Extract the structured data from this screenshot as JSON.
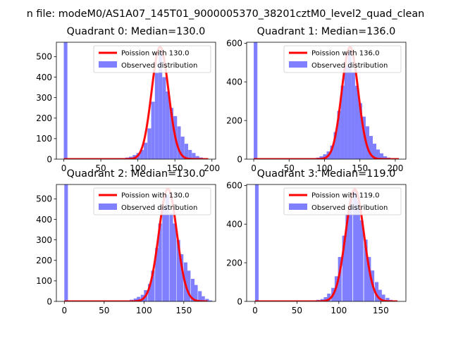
{
  "figure": {
    "suptitle": "n file: modeM0/AS1A07_145T01_9000005370_38201cztM0_level2_quad_clean"
  },
  "colors": {
    "poisson": "#ff0000",
    "observed": "#8080ff",
    "axis": "#000000"
  },
  "chart_data": [
    {
      "type": "bar",
      "title": "Quadrant 0: Median=130.0",
      "xlim": [
        -10,
        205
      ],
      "ylim": [
        0,
        570
      ],
      "xticks": [
        0,
        50,
        100,
        150,
        200
      ],
      "yticks": [
        0,
        100,
        200,
        300,
        400,
        500
      ],
      "legend_position": "top-right",
      "series": [
        {
          "name": "Observed distribution",
          "kind": "histogram",
          "bin_width": 4.9,
          "bins": [
            {
              "x": 0,
              "y": 570
            },
            {
              "x": 73,
              "y": 2
            },
            {
              "x": 78,
              "y": 5
            },
            {
              "x": 83,
              "y": 8
            },
            {
              "x": 88,
              "y": 12
            },
            {
              "x": 93,
              "y": 20
            },
            {
              "x": 98,
              "y": 30
            },
            {
              "x": 103,
              "y": 45
            },
            {
              "x": 108,
              "y": 80
            },
            {
              "x": 113,
              "y": 150
            },
            {
              "x": 118,
              "y": 280
            },
            {
              "x": 123,
              "y": 420
            },
            {
              "x": 128,
              "y": 520
            },
            {
              "x": 133,
              "y": 400
            },
            {
              "x": 138,
              "y": 330
            },
            {
              "x": 143,
              "y": 250
            },
            {
              "x": 148,
              "y": 210
            },
            {
              "x": 153,
              "y": 160
            },
            {
              "x": 158,
              "y": 110
            },
            {
              "x": 163,
              "y": 75
            },
            {
              "x": 168,
              "y": 45
            },
            {
              "x": 173,
              "y": 30
            },
            {
              "x": 178,
              "y": 15
            },
            {
              "x": 183,
              "y": 8
            },
            {
              "x": 188,
              "y": 3
            }
          ]
        },
        {
          "name": "Poission with 130.0",
          "kind": "line",
          "mean": 130.0,
          "peak": 548,
          "x_range": [
            0,
            195
          ]
        }
      ]
    },
    {
      "type": "bar",
      "title": "Quadrant 1: Median=136.0",
      "xlim": [
        -10,
        215
      ],
      "ylim": [
        0,
        605
      ],
      "xticks": [
        0,
        50,
        100,
        150,
        200
      ],
      "yticks": [
        0,
        200,
        400,
        600
      ],
      "legend_position": "top-right",
      "series": [
        {
          "name": "Observed distribution",
          "kind": "histogram",
          "bin_width": 5.2,
          "bins": [
            {
              "x": 0,
              "y": 605
            },
            {
              "x": 78,
              "y": 2
            },
            {
              "x": 83,
              "y": 5
            },
            {
              "x": 88,
              "y": 8
            },
            {
              "x": 93,
              "y": 15
            },
            {
              "x": 98,
              "y": 25
            },
            {
              "x": 103,
              "y": 40
            },
            {
              "x": 108,
              "y": 70
            },
            {
              "x": 113,
              "y": 140
            },
            {
              "x": 118,
              "y": 250
            },
            {
              "x": 123,
              "y": 380
            },
            {
              "x": 128,
              "y": 480
            },
            {
              "x": 133,
              "y": 560
            },
            {
              "x": 138,
              "y": 450
            },
            {
              "x": 143,
              "y": 380
            },
            {
              "x": 148,
              "y": 290
            },
            {
              "x": 153,
              "y": 220
            },
            {
              "x": 158,
              "y": 170
            },
            {
              "x": 163,
              "y": 120
            },
            {
              "x": 168,
              "y": 80
            },
            {
              "x": 173,
              "y": 50
            },
            {
              "x": 178,
              "y": 30
            },
            {
              "x": 183,
              "y": 15
            },
            {
              "x": 188,
              "y": 8
            },
            {
              "x": 193,
              "y": 4
            }
          ]
        },
        {
          "name": "Poission with 136.0",
          "kind": "line",
          "mean": 136.0,
          "peak": 580,
          "x_range": [
            0,
            205
          ]
        }
      ]
    },
    {
      "type": "bar",
      "title": "Quadrant 2: Median=130.0",
      "xlim": [
        -10,
        190
      ],
      "ylim": [
        0,
        570
      ],
      "xticks": [
        0,
        50,
        100,
        150
      ],
      "yticks": [
        0,
        100,
        200,
        300,
        400,
        500
      ],
      "legend_position": "top-right",
      "series": [
        {
          "name": "Observed distribution",
          "kind": "histogram",
          "bin_width": 4.5,
          "bins": [
            {
              "x": 0,
              "y": 570
            },
            {
              "x": 78,
              "y": 4
            },
            {
              "x": 82,
              "y": 8
            },
            {
              "x": 87,
              "y": 14
            },
            {
              "x": 91,
              "y": 22
            },
            {
              "x": 96,
              "y": 32
            },
            {
              "x": 100,
              "y": 55
            },
            {
              "x": 105,
              "y": 85
            },
            {
              "x": 109,
              "y": 150
            },
            {
              "x": 114,
              "y": 260
            },
            {
              "x": 118,
              "y": 380
            },
            {
              "x": 123,
              "y": 460
            },
            {
              "x": 127,
              "y": 520
            },
            {
              "x": 132,
              "y": 430
            },
            {
              "x": 136,
              "y": 380
            },
            {
              "x": 141,
              "y": 300
            },
            {
              "x": 145,
              "y": 230
            },
            {
              "x": 150,
              "y": 190
            },
            {
              "x": 154,
              "y": 150
            },
            {
              "x": 159,
              "y": 110
            },
            {
              "x": 163,
              "y": 80
            },
            {
              "x": 168,
              "y": 50
            },
            {
              "x": 172,
              "y": 25
            },
            {
              "x": 177,
              "y": 12
            },
            {
              "x": 181,
              "y": 5
            }
          ]
        },
        {
          "name": "Poission with 130.0",
          "kind": "line",
          "mean": 130.0,
          "peak": 548,
          "x_range": [
            0,
            180
          ]
        }
      ]
    },
    {
      "type": "bar",
      "title": "Quadrant 3: Median=119.0",
      "xlim": [
        -10,
        180
      ],
      "ylim": [
        0,
        605
      ],
      "xticks": [
        0,
        50,
        100,
        150
      ],
      "yticks": [
        0,
        200,
        400,
        600
      ],
      "legend_position": "top-right",
      "series": [
        {
          "name": "Observed distribution",
          "kind": "histogram",
          "bin_width": 4.3,
          "bins": [
            {
              "x": 0,
              "y": 605
            },
            {
              "x": 65,
              "y": 2
            },
            {
              "x": 69,
              "y": 4
            },
            {
              "x": 73,
              "y": 8
            },
            {
              "x": 78,
              "y": 12
            },
            {
              "x": 82,
              "y": 22
            },
            {
              "x": 86,
              "y": 40
            },
            {
              "x": 91,
              "y": 70
            },
            {
              "x": 95,
              "y": 130
            },
            {
              "x": 99,
              "y": 230
            },
            {
              "x": 104,
              "y": 340
            },
            {
              "x": 108,
              "y": 450
            },
            {
              "x": 112,
              "y": 530
            },
            {
              "x": 117,
              "y": 580
            },
            {
              "x": 121,
              "y": 520
            },
            {
              "x": 125,
              "y": 420
            },
            {
              "x": 130,
              "y": 320
            },
            {
              "x": 134,
              "y": 230
            },
            {
              "x": 138,
              "y": 160
            },
            {
              "x": 143,
              "y": 100
            },
            {
              "x": 147,
              "y": 60
            },
            {
              "x": 151,
              "y": 35
            },
            {
              "x": 156,
              "y": 18
            },
            {
              "x": 160,
              "y": 8
            },
            {
              "x": 164,
              "y": 3
            }
          ]
        },
        {
          "name": "Poission with 119.0",
          "kind": "line",
          "mean": 119.0,
          "peak": 580,
          "x_range": [
            0,
            170
          ]
        }
      ]
    }
  ]
}
